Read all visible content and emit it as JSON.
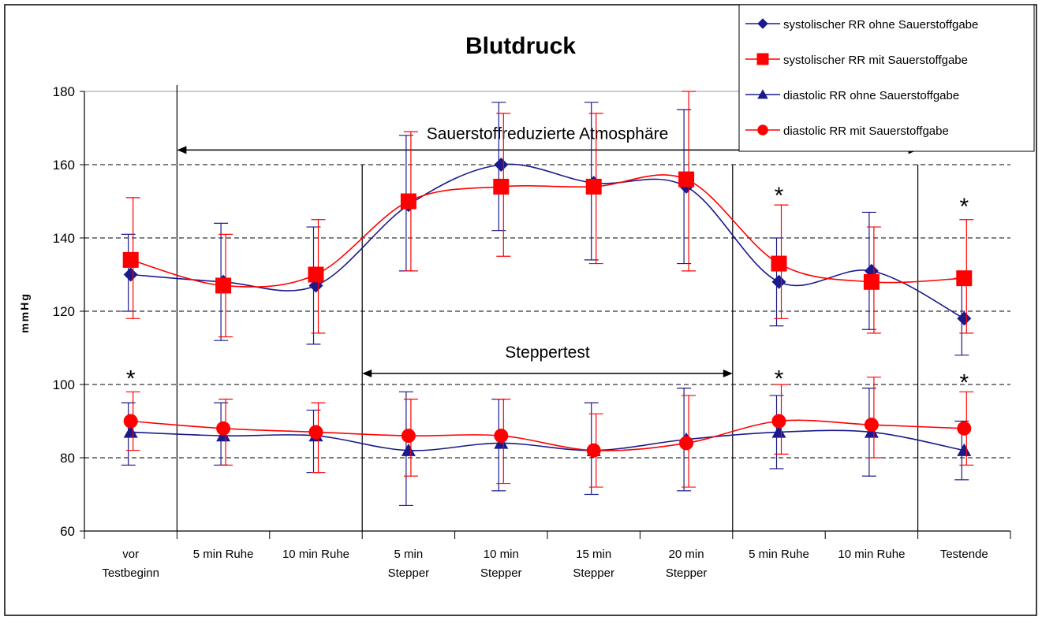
{
  "chart_data": {
    "type": "line",
    "title": "Blutdruck",
    "ylabel": "mmHg",
    "xlabel": "",
    "ylim": [
      60,
      180
    ],
    "yticks": [
      60,
      80,
      100,
      120,
      140,
      160,
      180
    ],
    "grid": "horizontal dashed",
    "legend_position": "top-right",
    "categories": [
      [
        "vor",
        "Testbeginn"
      ],
      [
        "5 min Ruhe"
      ],
      [
        "10 min Ruhe"
      ],
      [
        "5 min",
        "Stepper"
      ],
      [
        "10 min",
        "Stepper"
      ],
      [
        "15 min",
        "Stepper"
      ],
      [
        "20 min",
        "Stepper"
      ],
      [
        "5 min Ruhe"
      ],
      [
        "10 min Ruhe"
      ],
      [
        "Testende"
      ]
    ],
    "series": [
      {
        "name": "systolischer RR ohne Sauerstoffgabe",
        "color": "#1a1a8c",
        "marker": "diamond",
        "values": [
          130,
          128,
          127,
          149,
          160,
          155,
          154,
          128,
          131,
          118
        ],
        "err_low": [
          120,
          112,
          111,
          131,
          142,
          134,
          133,
          116,
          115,
          108
        ],
        "err_high": [
          141,
          144,
          143,
          168,
          177,
          177,
          175,
          140,
          147,
          129
        ]
      },
      {
        "name": "systolischer RR mit Sauerstoffgabe",
        "color": "#ff0000",
        "marker": "square",
        "values": [
          134,
          127,
          130,
          150,
          154,
          154,
          156,
          133,
          128,
          129
        ],
        "err_low": [
          118,
          113,
          114,
          131,
          135,
          133,
          131,
          118,
          114,
          114
        ],
        "err_high": [
          151,
          141,
          145,
          169,
          174,
          174,
          180,
          149,
          143,
          145
        ]
      },
      {
        "name": "diastolic RR ohne Sauerstoffgabe",
        "color": "#1a1a8c",
        "marker": "triangle",
        "values": [
          87,
          86,
          86,
          82,
          84,
          82,
          85,
          87,
          87,
          82
        ],
        "err_low": [
          78,
          78,
          76,
          67,
          71,
          70,
          71,
          77,
          75,
          74
        ],
        "err_high": [
          95,
          95,
          93,
          98,
          96,
          95,
          99,
          97,
          99,
          90
        ]
      },
      {
        "name": "diastolic RR mit Sauerstoffgabe",
        "color": "#ff0000",
        "marker": "circle",
        "values": [
          90,
          88,
          87,
          86,
          86,
          82,
          84,
          90,
          89,
          88
        ],
        "err_low": [
          82,
          78,
          76,
          75,
          73,
          72,
          72,
          81,
          80,
          78
        ],
        "err_high": [
          98,
          96,
          95,
          96,
          96,
          92,
          97,
          100,
          102,
          98
        ]
      }
    ],
    "annotations": {
      "atmosphere": {
        "label": "Sauerstoffreduzierte Atmosphäre",
        "from_category": 0.5,
        "to_category": 8.5,
        "arrow_y": 164
      },
      "stepper": {
        "label": "Steppertest",
        "from_category": 2.5,
        "to_category": 6.5,
        "arrow_y": 103
      },
      "significance_marker": "*",
      "significance": [
        {
          "category": 0,
          "y": 102
        },
        {
          "category": 7,
          "y": 152
        },
        {
          "category": 7,
          "y": 102
        },
        {
          "category": 9,
          "y": 149
        },
        {
          "category": 9,
          "y": 101
        }
      ]
    }
  }
}
